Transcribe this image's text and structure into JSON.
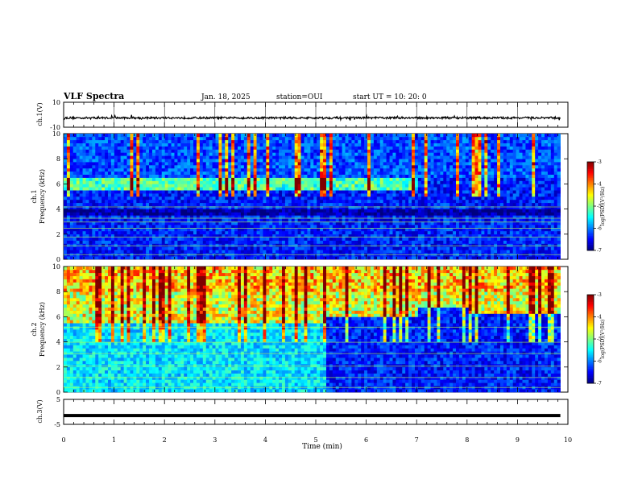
{
  "header": {
    "title": "VLF Spectra",
    "date": "Jan. 18, 2025",
    "station": "station=OUI",
    "start": "start  UT =  10: 20: 0"
  },
  "chart_data": [
    {
      "type": "line",
      "panel": "ch1-waveform",
      "ylabel": "ch.1(V)",
      "yticks": [
        "10",
        "-10"
      ],
      "ylim": [
        -10,
        10
      ],
      "x_range_min": [
        0,
        9.85
      ],
      "approx_level_V": -2.5,
      "trace_color": "#000000"
    },
    {
      "type": "heatmap",
      "panel": "ch1-spectrogram",
      "ylabel_channel": "ch.1",
      "ylabel": "Frequency  (kHz)",
      "yticks": [
        "0",
        "2",
        "4",
        "6",
        "8",
        "10"
      ],
      "ylim_kHz": [
        0,
        10
      ],
      "background_level_log_psd": -6.4,
      "emission_band_kHz": [
        5.5,
        6.5
      ],
      "emission_band_end_min": 7.0,
      "colorbar": {
        "label": "log(PSD)(V²/Hz)",
        "ticks": [
          "-3",
          "-4",
          "-5",
          "-6",
          "-7"
        ],
        "range": [
          -7,
          -3
        ]
      }
    },
    {
      "type": "heatmap",
      "panel": "ch2-spectrogram",
      "ylabel_channel": "ch.2",
      "ylabel": "Frequency  (kHz)",
      "yticks": [
        "0",
        "2",
        "4",
        "6",
        "8",
        "10"
      ],
      "ylim_kHz": [
        0,
        10
      ],
      "high_band_cutoff_kHz": {
        "before_5.2min": 5.4,
        "5.2_to_7.0min": 6.0,
        "7.0_to_8.0min": 6.8,
        "after_8.0min": 6.2
      },
      "colorbar": {
        "label": "log(PSD)(V²/Hz)",
        "ticks": [
          "-3",
          "-4",
          "-5",
          "-6",
          "-7"
        ],
        "range": [
          -7,
          -3
        ]
      }
    },
    {
      "type": "line",
      "panel": "ch3-waveform",
      "ylabel": "ch.3(V)",
      "yticks": [
        "5",
        "-5"
      ],
      "ylim": [
        -5,
        5
      ],
      "approx_level_V": -1.5,
      "trace_color": "#000000"
    }
  ],
  "xaxis": {
    "label": "Time  (min)",
    "ticks": [
      "0",
      "1",
      "2",
      "3",
      "4",
      "5",
      "6",
      "7",
      "8",
      "9",
      "10"
    ],
    "xlim": [
      0,
      10
    ]
  },
  "colormap": [
    "#00007f",
    "#0000ff",
    "#007fff",
    "#00ffff",
    "#7fff7f",
    "#ffff00",
    "#ff7f00",
    "#ff0000",
    "#7f0000"
  ]
}
